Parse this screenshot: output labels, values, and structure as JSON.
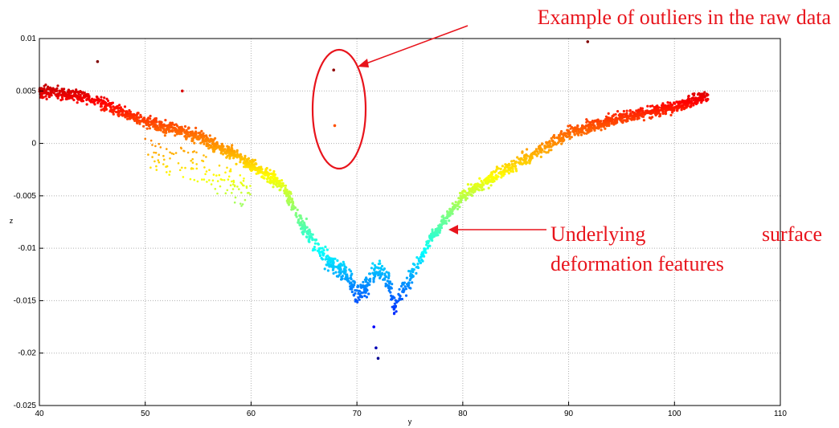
{
  "chart_data": {
    "type": "scatter",
    "colormap": "jet",
    "xlabel": "y",
    "ylabel": "z",
    "xlim": [
      40,
      110
    ],
    "ylim": [
      -0.025,
      0.01
    ],
    "grid": true,
    "x_ticks": [
      "40",
      "50",
      "60",
      "70",
      "80",
      "90",
      "100",
      "110"
    ],
    "y_ticks": [
      "0.01",
      "0.005",
      "0",
      "-0.005",
      "-0.01",
      "-0.015",
      "-0.02",
      "-0.025"
    ],
    "profile": {
      "x": [
        40,
        44,
        46,
        50,
        55,
        60,
        63,
        65,
        67,
        69,
        70,
        71,
        72,
        73,
        73.5,
        75,
        77,
        80,
        85,
        90,
        95,
        100,
        103.2
      ],
      "y": [
        0.005,
        0.0045,
        0.0038,
        0.002,
        0.0007,
        -0.002,
        -0.004,
        -0.008,
        -0.011,
        -0.0125,
        -0.0145,
        -0.0135,
        -0.012,
        -0.013,
        -0.0155,
        -0.013,
        -0.009,
        -0.005,
        -0.002,
        0.001,
        0.0025,
        0.0035,
        0.0045
      ]
    },
    "outliers": [
      {
        "x": 67.8,
        "y": 0.007
      },
      {
        "x": 67.9,
        "y": 0.0017
      },
      {
        "x": 91.8,
        "y": 0.0097
      },
      {
        "x": 45.5,
        "y": 0.0078
      },
      {
        "x": 53.5,
        "y": 0.005
      },
      {
        "x": 71.8,
        "y": -0.0195
      },
      {
        "x": 72.0,
        "y": -0.0205
      },
      {
        "x": 71.6,
        "y": -0.0175
      }
    ]
  },
  "annotations": {
    "outliers_label": "Example of outliers in the raw data",
    "surface_label_word1": "Underlying",
    "surface_label_word2": "surface",
    "surface_label_line2": "deformation features"
  },
  "colors": {
    "annotation": "#e8141c",
    "grid": "#b0b0b0"
  }
}
